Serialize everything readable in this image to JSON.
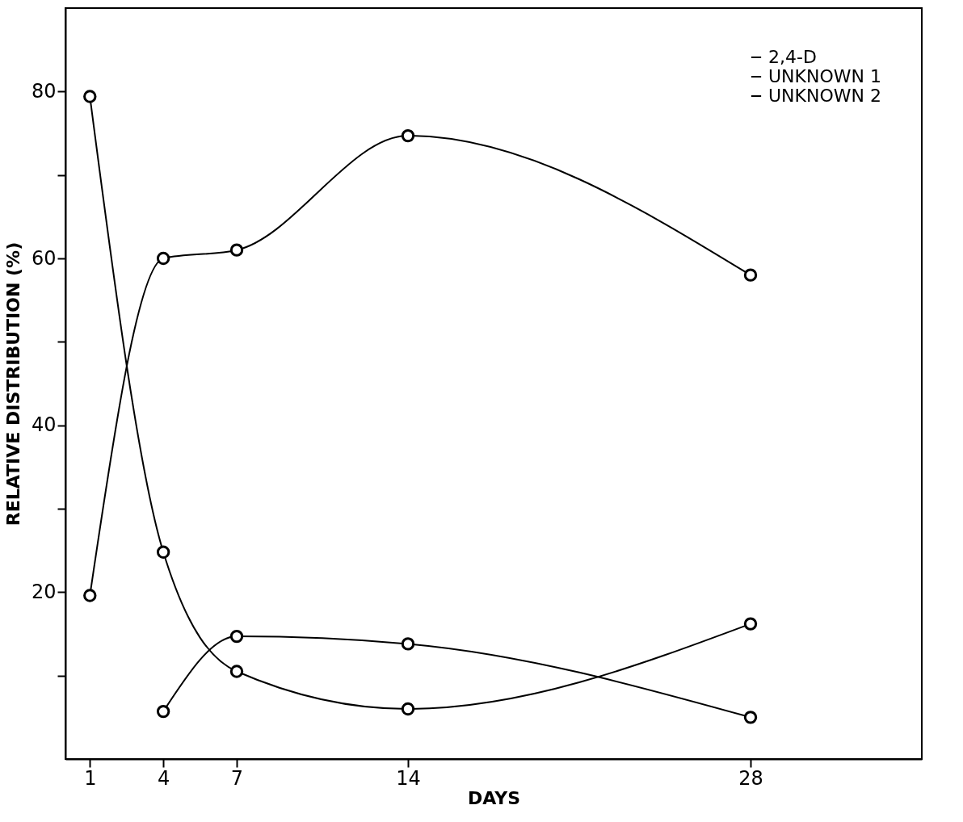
{
  "chart_data": {
    "type": "line",
    "xlabel": "DAYS",
    "ylabel": "RELATIVE DISTRIBUTION (%)",
    "x": [
      1,
      4,
      7,
      14,
      28
    ],
    "series": [
      {
        "name": "2,4-D",
        "color": "#000000",
        "values": [
          79.4,
          24.8,
          10.5,
          6.0,
          16.2
        ]
      },
      {
        "name": "UNKNOWN 1",
        "color": "#000000",
        "values": [
          19.6,
          60,
          61,
          74.7,
          58
        ]
      },
      {
        "name": "UNKNOWN 2",
        "color": "#000000",
        "values": [
          null,
          5.7,
          14.7,
          13.8,
          5.0
        ]
      }
    ],
    "xlim": [
      0,
      35
    ],
    "ylim": [
      0,
      90
    ],
    "xticks": [
      1,
      4,
      7,
      14,
      28
    ],
    "yticks": [
      {
        "value": 10,
        "label": null
      },
      20,
      {
        "value": 30,
        "label": null
      },
      40,
      {
        "value": 50,
        "label": null
      },
      60,
      {
        "value": 70,
        "label": null
      },
      80
    ],
    "grid": false,
    "legend": "top right",
    "marker": "circle",
    "line_style": "solid"
  }
}
